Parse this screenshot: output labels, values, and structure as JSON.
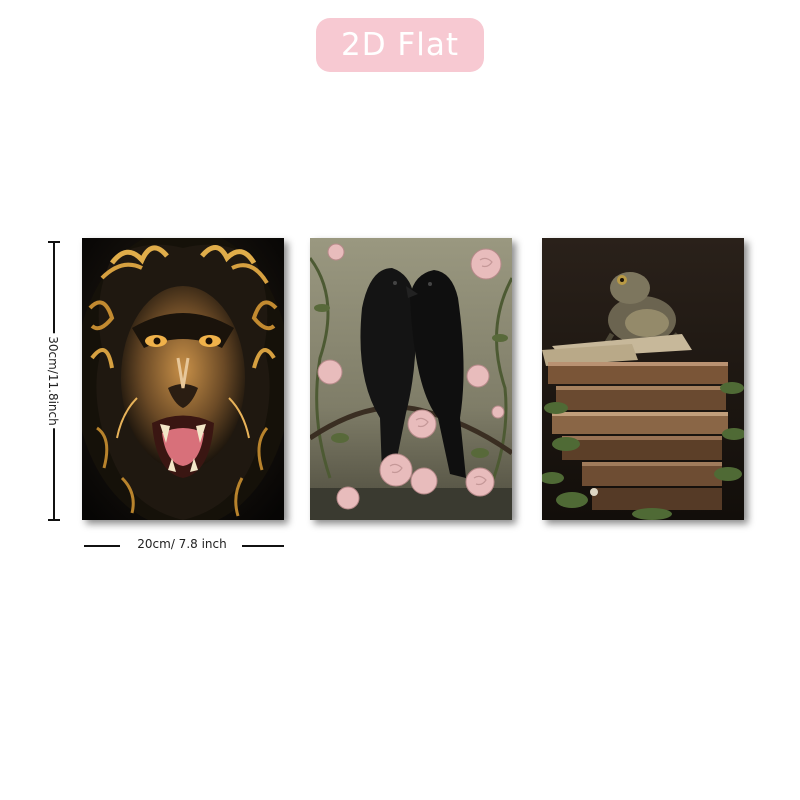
{
  "badge": {
    "label": "2D Flat",
    "color": "#f7c9d2"
  },
  "dimensions": {
    "height_label": "30cm/11.8inch",
    "width_label": "20cm/ 7.8 inch"
  },
  "panels": [
    {
      "subject": "lion",
      "palette": [
        "#0d0b08",
        "#c08a2e",
        "#f2b35a"
      ]
    },
    {
      "subject": "ravens-and-roses",
      "palette": [
        "#8a8a74",
        "#151515",
        "#e8b8b8"
      ]
    },
    {
      "subject": "toad-on-books",
      "palette": [
        "#1e1812",
        "#6b4a30",
        "#4f6a35"
      ]
    }
  ]
}
